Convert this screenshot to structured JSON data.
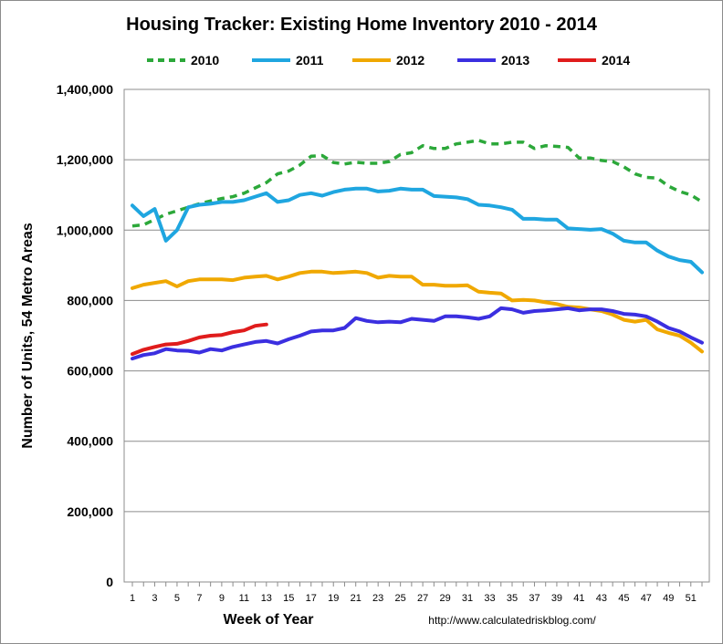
{
  "chart_data": {
    "type": "line",
    "title": "Housing Tracker: Existing Home Inventory 2010 - 2014",
    "xlabel": "Week of Year",
    "ylabel": "Number of Units, 54 Metro Areas",
    "source": "http://www.calculatedriskblog.com/",
    "ylim": [
      0,
      1400000
    ],
    "xlim": [
      1,
      52
    ],
    "y_ticks": [
      "0",
      "200,000",
      "400,000",
      "600,000",
      "800,000",
      "1,000,000",
      "1,200,000",
      "1,400,000"
    ],
    "y_tick_values": [
      0,
      200000,
      400000,
      600000,
      800000,
      1000000,
      1200000,
      1400000
    ],
    "x_ticks": [
      "1",
      "3",
      "5",
      "7",
      "9",
      "11",
      "13",
      "15",
      "17",
      "19",
      "21",
      "23",
      "25",
      "27",
      "29",
      "31",
      "33",
      "35",
      "37",
      "39",
      "41",
      "43",
      "45",
      "47",
      "49",
      "51"
    ],
    "grid": "horizontal",
    "legend_position": "top",
    "series": [
      {
        "name": "2010",
        "color": "#2ca83a",
        "dash": true,
        "values": [
          1012000,
          1015000,
          1030000,
          1045000,
          1055000,
          1065000,
          1075000,
          1083000,
          1090000,
          1095000,
          1105000,
          1120000,
          1135000,
          1160000,
          1168000,
          1185000,
          1210000,
          1212000,
          1192000,
          1188000,
          1193000,
          1190000,
          1190000,
          1195000,
          1215000,
          1220000,
          1240000,
          1232000,
          1232000,
          1245000,
          1250000,
          1255000,
          1245000,
          1245000,
          1250000,
          1250000,
          1232000,
          1240000,
          1238000,
          1235000,
          1205000,
          1205000,
          1198000,
          1195000,
          1180000,
          1160000,
          1150000,
          1148000,
          1125000,
          1110000,
          1100000,
          1080000
        ]
      },
      {
        "name": "2011",
        "color": "#1fa6e0",
        "dash": false,
        "values": [
          1070000,
          1040000,
          1060000,
          970000,
          1000000,
          1065000,
          1072000,
          1075000,
          1080000,
          1080000,
          1085000,
          1095000,
          1105000,
          1080000,
          1085000,
          1100000,
          1105000,
          1098000,
          1108000,
          1115000,
          1118000,
          1118000,
          1110000,
          1112000,
          1118000,
          1115000,
          1115000,
          1097000,
          1095000,
          1093000,
          1088000,
          1072000,
          1070000,
          1065000,
          1058000,
          1032000,
          1032000,
          1030000,
          1030000,
          1005000,
          1003000,
          1001000,
          1003000,
          990000,
          970000,
          965000,
          965000,
          942000,
          925000,
          915000,
          910000,
          880000
        ]
      },
      {
        "name": "2012",
        "color": "#f0a800",
        "dash": false,
        "values": [
          835000,
          845000,
          850000,
          855000,
          840000,
          855000,
          860000,
          860000,
          860000,
          858000,
          865000,
          868000,
          870000,
          860000,
          868000,
          878000,
          882000,
          882000,
          878000,
          880000,
          882000,
          878000,
          865000,
          870000,
          868000,
          868000,
          845000,
          845000,
          842000,
          842000,
          843000,
          825000,
          822000,
          820000,
          800000,
          802000,
          800000,
          795000,
          790000,
          782000,
          780000,
          775000,
          770000,
          760000,
          745000,
          740000,
          745000,
          718000,
          708000,
          700000,
          680000,
          655000
        ]
      },
      {
        "name": "2013",
        "color": "#3b2fe0",
        "dash": false,
        "values": [
          635000,
          645000,
          650000,
          662000,
          658000,
          657000,
          652000,
          662000,
          658000,
          668000,
          675000,
          682000,
          685000,
          678000,
          690000,
          700000,
          712000,
          715000,
          715000,
          722000,
          750000,
          742000,
          738000,
          740000,
          738000,
          748000,
          745000,
          742000,
          755000,
          755000,
          752000,
          748000,
          755000,
          778000,
          775000,
          765000,
          770000,
          772000,
          775000,
          778000,
          772000,
          775000,
          775000,
          770000,
          762000,
          760000,
          755000,
          740000,
          722000,
          712000,
          695000,
          680000
        ]
      },
      {
        "name": "2014",
        "color": "#e01c1c",
        "dash": false,
        "values": [
          648000,
          660000,
          668000,
          675000,
          677000,
          685000,
          695000,
          700000,
          702000,
          710000,
          715000,
          728000,
          732000
        ]
      }
    ]
  }
}
